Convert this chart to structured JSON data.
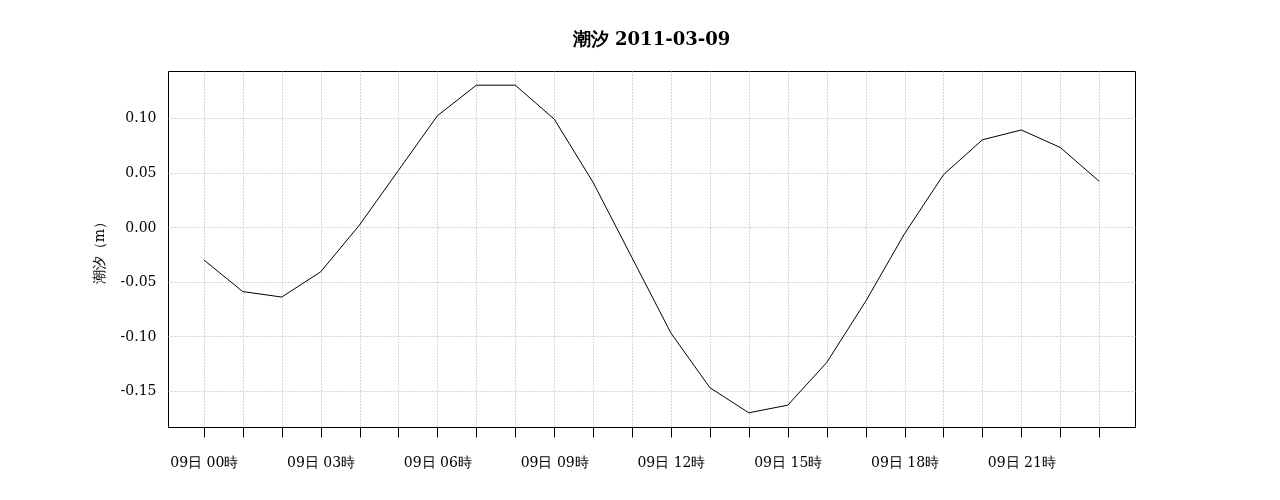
{
  "chart_data": {
    "type": "line",
    "title": "潮汐 2011-03-09",
    "ylabel": "潮汐（m）",
    "categories": [
      "09日 00時",
      null,
      null,
      "09日 03時",
      null,
      null,
      "09日 06時",
      null,
      null,
      "09日 09時",
      null,
      null,
      "09日 12時",
      null,
      null,
      "09日 15時",
      null,
      null,
      "09日 18時",
      null,
      null,
      "09日 21時",
      null,
      null
    ],
    "series": [
      {
        "color": "#000000",
        "values": [
          -0.03,
          -0.059,
          -0.064,
          -0.041,
          0.002,
          0.052,
          0.102,
          0.13,
          0.13,
          0.099,
          0.041,
          -0.028,
          -0.097,
          -0.147,
          -0.17,
          -0.163,
          -0.124,
          -0.068,
          -0.006,
          0.048,
          0.08,
          0.089,
          0.073,
          0.042
        ]
      }
    ],
    "ylim": [
      -0.183,
      0.143
    ],
    "yticks": [
      {
        "value": -0.15,
        "label": "-0.15"
      },
      {
        "value": -0.1,
        "label": "-0.10"
      },
      {
        "value": -0.05,
        "label": "-0.05"
      },
      {
        "value": 0,
        "label": "0.00"
      },
      {
        "value": 0.05,
        "label": "0.05"
      },
      {
        "value": 0.1,
        "label": "0.10"
      }
    ],
    "grid": true
  }
}
